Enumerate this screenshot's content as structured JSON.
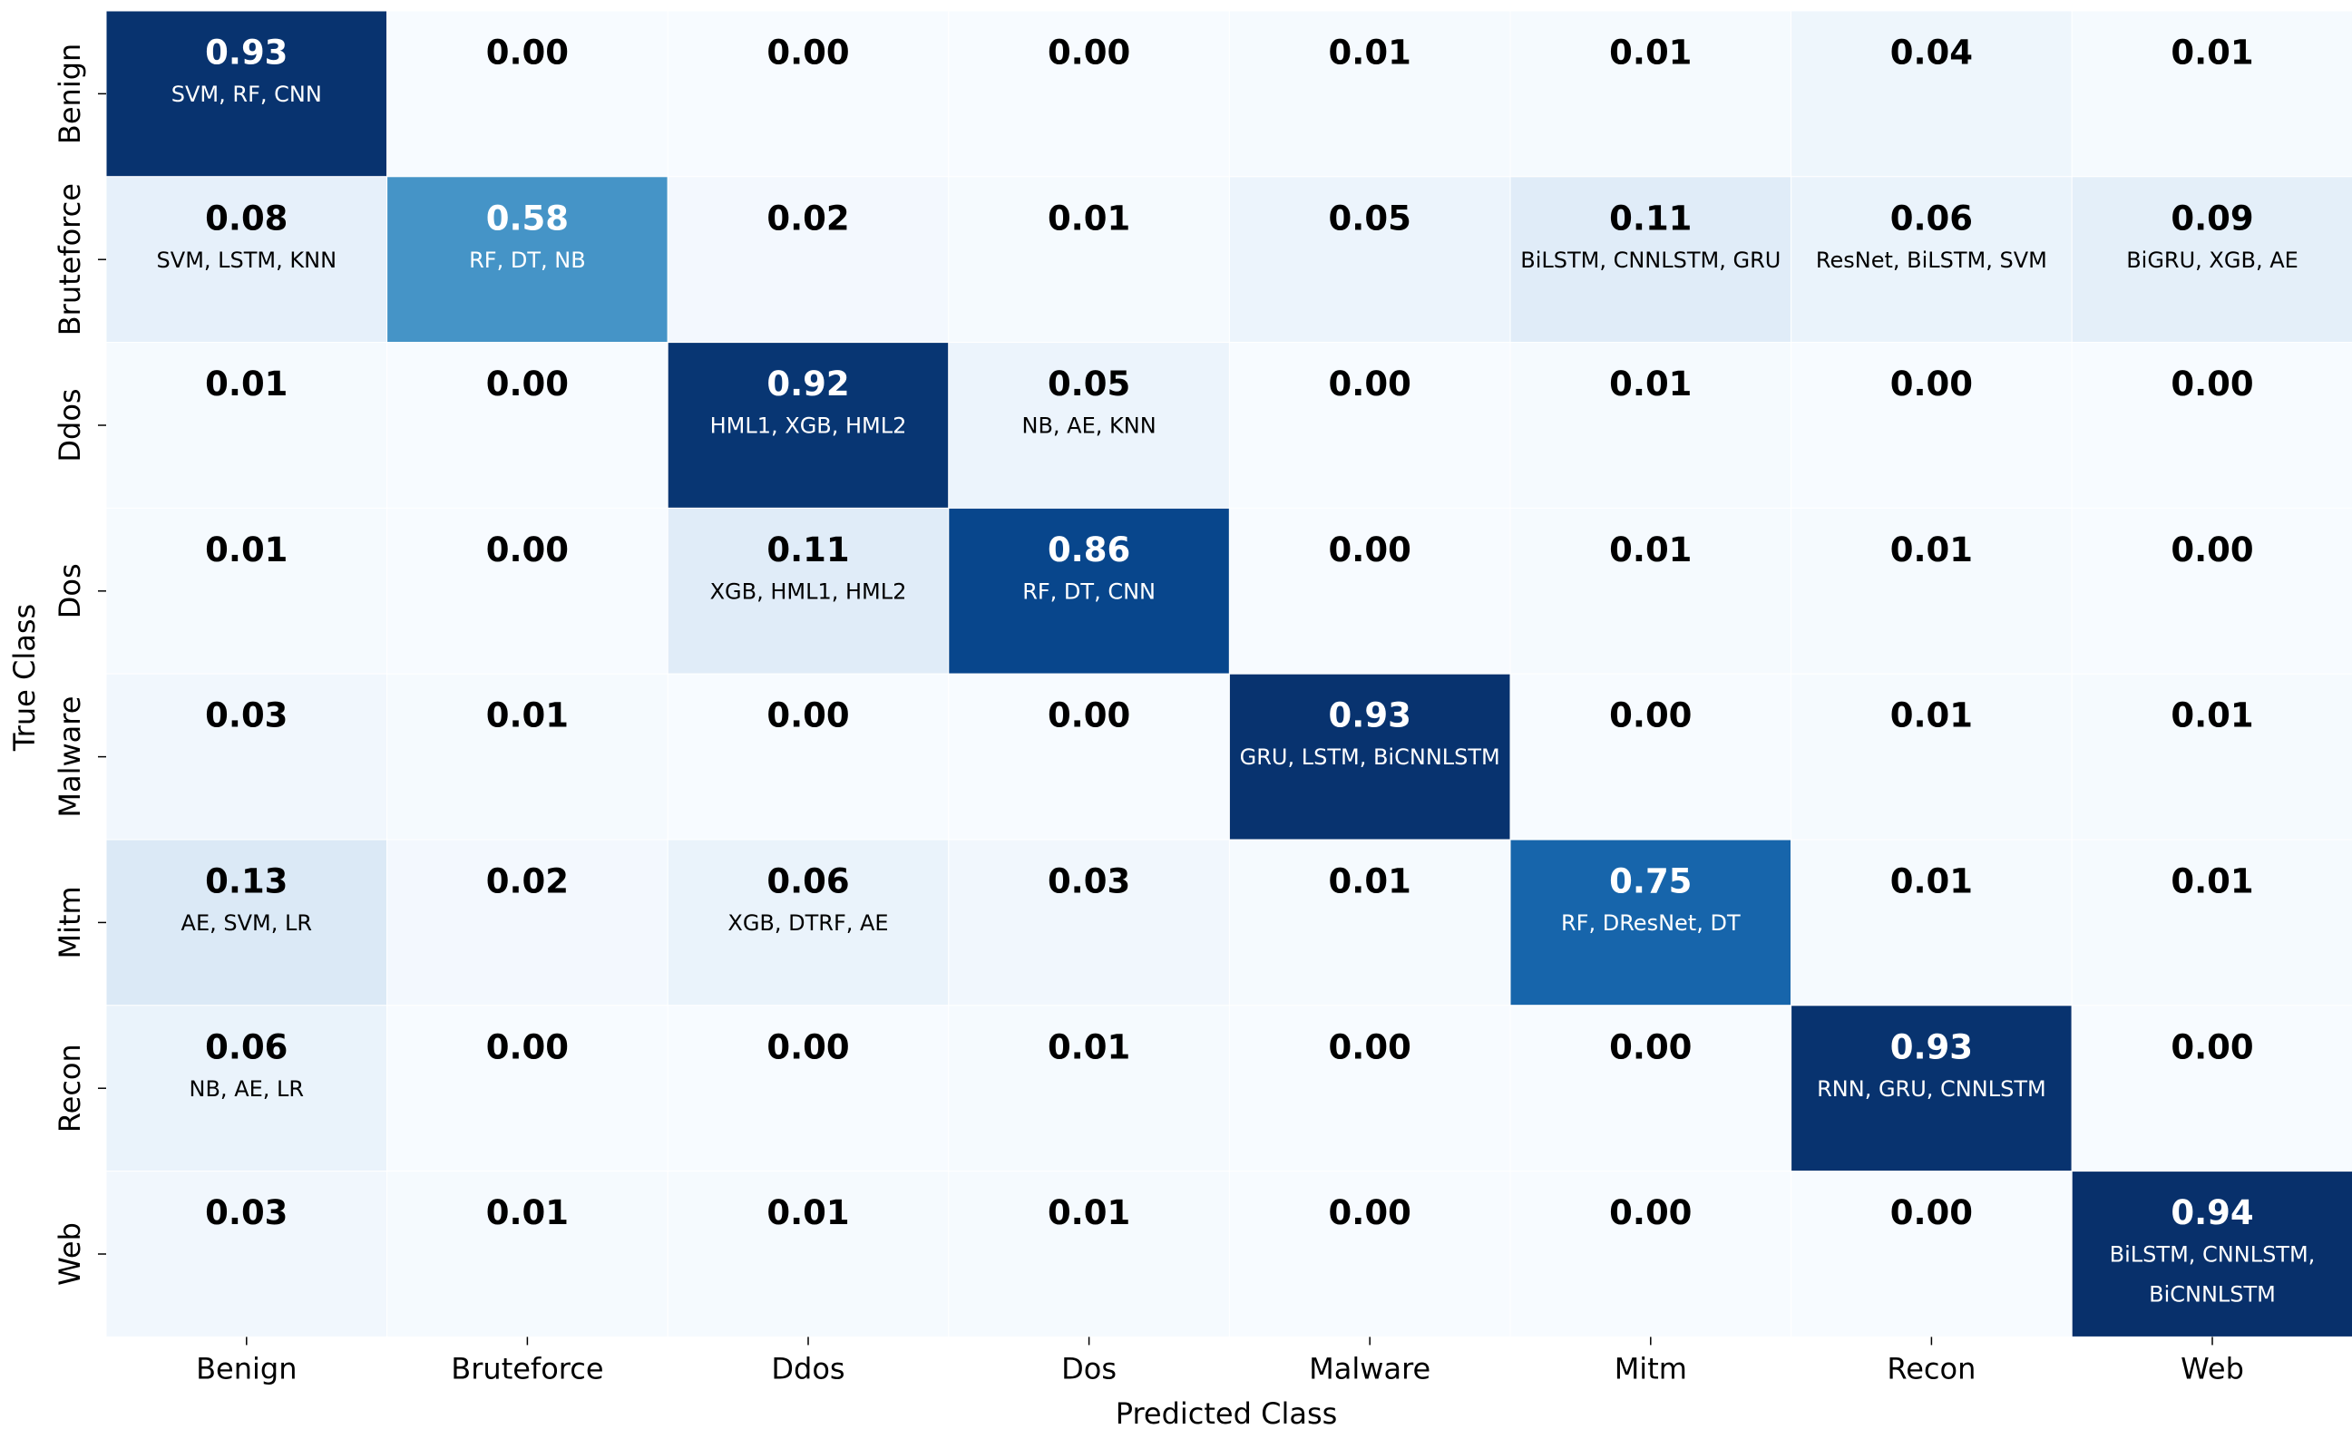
{
  "chart_data": {
    "type": "heatmap",
    "xlabel": "Predicted Class",
    "ylabel": "True Class",
    "x_categories": [
      "Benign",
      "Bruteforce",
      "Ddos",
      "Dos",
      "Malware",
      "Mitm",
      "Recon",
      "Web"
    ],
    "y_categories": [
      "Benign",
      "Bruteforce",
      "Ddos",
      "Dos",
      "Malware",
      "Mitm",
      "Recon",
      "Web"
    ],
    "value_labels": [
      [
        "0.93",
        "0.00",
        "0.00",
        "0.00",
        "0.01",
        "0.01",
        "0.04",
        "0.01"
      ],
      [
        "0.08",
        "0.58",
        "0.02",
        "0.01",
        "0.05",
        "0.11",
        "0.06",
        "0.09"
      ],
      [
        "0.01",
        "0.00",
        "0.92",
        "0.05",
        "0.00",
        "0.01",
        "0.00",
        "0.00"
      ],
      [
        "0.01",
        "0.00",
        "0.11",
        "0.86",
        "0.00",
        "0.01",
        "0.01",
        "0.00"
      ],
      [
        "0.03",
        "0.01",
        "0.00",
        "0.00",
        "0.93",
        "0.00",
        "0.01",
        "0.01"
      ],
      [
        "0.13",
        "0.02",
        "0.06",
        "0.03",
        "0.01",
        "0.75",
        "0.01",
        "0.01"
      ],
      [
        "0.06",
        "0.00",
        "0.00",
        "0.01",
        "0.00",
        "0.00",
        "0.93",
        "0.00"
      ],
      [
        "0.03",
        "0.01",
        "0.01",
        "0.01",
        "0.00",
        "0.00",
        "0.00",
        "0.94"
      ]
    ],
    "model_labels": [
      [
        "SVM, RF, CNN",
        "",
        "",
        "",
        "",
        "",
        "",
        ""
      ],
      [
        "SVM, LSTM, KNN",
        "RF, DT, NB",
        "",
        "",
        "",
        "BiLSTM, CNNLSTM, GRU",
        "ResNet, BiLSTM, SVM",
        "BiGRU, XGB, AE"
      ],
      [
        "",
        "",
        "HML1, XGB, HML2",
        "NB, AE, KNN",
        "",
        "",
        "",
        ""
      ],
      [
        "",
        "",
        "XGB, HML1, HML2",
        "RF, DT, CNN",
        "",
        "",
        "",
        ""
      ],
      [
        "",
        "",
        "",
        "",
        "GRU, LSTM, BiCNNLSTM",
        "",
        "",
        ""
      ],
      [
        "AE, SVM, LR",
        "",
        "XGB, DTRF, AE",
        "",
        "",
        "RF, DResNet, DT",
        "",
        ""
      ],
      [
        "NB, AE, LR",
        "",
        "",
        "",
        "",
        "",
        "RNN, GRU, CNNLSTM",
        ""
      ],
      [
        "",
        "",
        "",
        "",
        "",
        "",
        "",
        "BiLSTM, CNNLSTM,\nBiCNNLSTM"
      ]
    ],
    "colormap": "Blues",
    "vmin": 0,
    "vmax": 0.94,
    "grid": false,
    "legend": "none"
  }
}
